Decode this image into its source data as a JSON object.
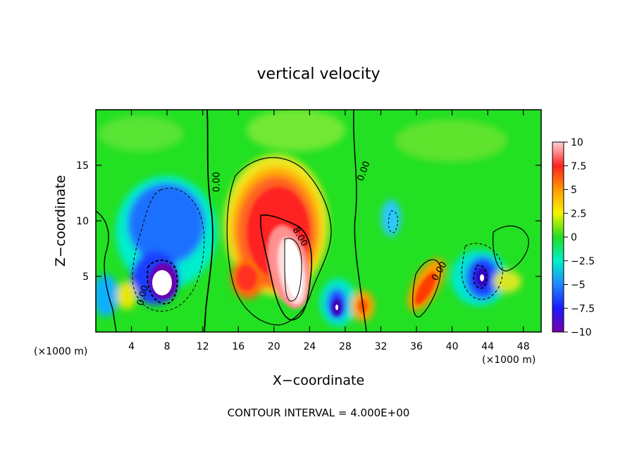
{
  "chart_data": {
    "type": "heatmap",
    "title": "vertical velocity",
    "xlabel": "X−coordinate",
    "ylabel": "Z−coordinate",
    "x_unit_left": "(×1000 m)",
    "x_unit_right": "(×1000 m)",
    "footer": "CONTOUR INTERVAL = 4.000E+00",
    "xlim": [
      0,
      50
    ],
    "ylim": [
      0,
      20
    ],
    "x_ticks": [
      4,
      8,
      12,
      16,
      20,
      24,
      28,
      32,
      36,
      40,
      44,
      48
    ],
    "y_ticks": [
      5,
      10,
      15
    ],
    "colorbar": {
      "range": [
        -10,
        10
      ],
      "ticks": [
        10,
        7.5,
        5,
        2.5,
        0,
        -2.5,
        -5,
        -7.5,
        -10
      ],
      "tick_labels": [
        "10",
        "7.5",
        "5",
        "2.5",
        "0",
        "−2.5",
        "−5",
        "−7.5",
        "−10"
      ],
      "colors": [
        "#ffb0b0",
        "#ff3030",
        "#ff9a00",
        "#f5f500",
        "#22dd22",
        "#00f0c8",
        "#1e88ff",
        "#1a1aff",
        "#6a00a8"
      ]
    },
    "contour_labels": [
      {
        "text": "0.00",
        "x": 13.5,
        "y": 13.5
      },
      {
        "text": "0.00",
        "x": 30.0,
        "y": 14.5
      },
      {
        "text": "8.00",
        "x": 23.0,
        "y": 8.6
      },
      {
        "text": "0.00",
        "x": 5.2,
        "y": 3.3
      },
      {
        "text": "0.00",
        "x": 38.5,
        "y": 5.5
      }
    ],
    "features": [
      {
        "name": "updraft-core",
        "x": 21.5,
        "z": 6.5,
        "w": 10.3
      },
      {
        "name": "updraft-secondary",
        "x": 17.0,
        "z": 5.0,
        "w": 6.0
      },
      {
        "name": "downdraft-upper",
        "x": 8.0,
        "z": 9.5,
        "w": -4.0
      },
      {
        "name": "downdraft-core",
        "x": 7.2,
        "z": 4.5,
        "w": -11.0
      },
      {
        "name": "downdraft-small",
        "x": 26.8,
        "z": 2.3,
        "w": -9.5
      },
      {
        "name": "updraft-small",
        "x": 30.0,
        "z": 2.5,
        "w": 6.0
      },
      {
        "name": "updraft-tilted",
        "x": 37.3,
        "z": 3.5,
        "w": 7.0
      },
      {
        "name": "downdraft-right",
        "x": 43.2,
        "z": 5.0,
        "w": -11.0
      },
      {
        "name": "downdraft-left-edge",
        "x": 1.0,
        "z": 3.5,
        "w": -4.0
      }
    ]
  }
}
